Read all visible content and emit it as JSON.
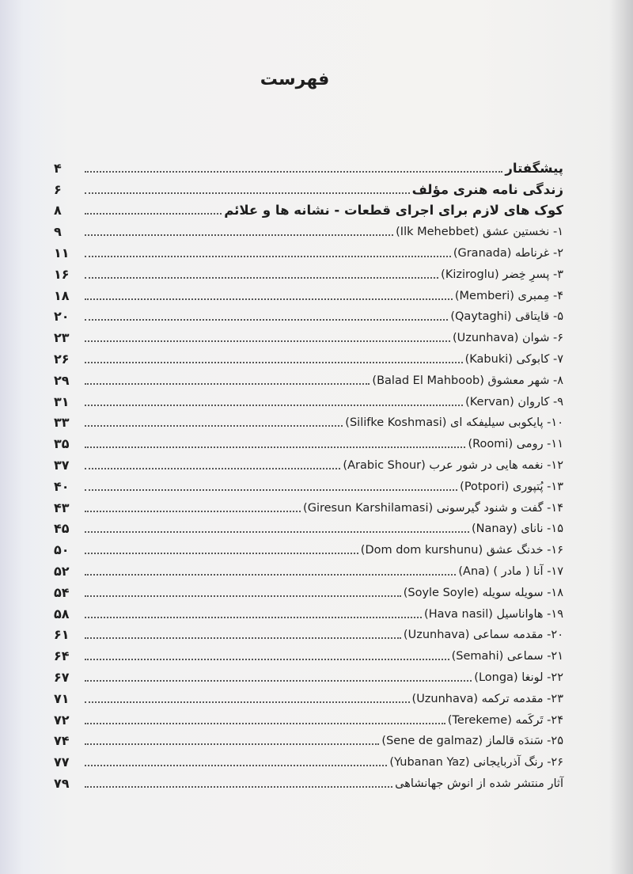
{
  "page_title": "فهرست",
  "entries": [
    {
      "label": "پیشگفتار",
      "page": "۴",
      "front": true
    },
    {
      "label": "زندگی نامه هنری مؤلف",
      "page": "۶",
      "front": true
    },
    {
      "label": "کوک های لازم برای اجرای قطعات - نشانه ها و علائم",
      "page": "۸",
      "front": true
    },
    {
      "label": "۱- نخستین عشق (Ilk Mehebbet)",
      "page": "۹"
    },
    {
      "label": "۲- غرناطه (Granada)",
      "page": "۱۱"
    },
    {
      "label": "۳- پسرِ خِضر (Kiziroglu)",
      "page": "۱۶"
    },
    {
      "label": "۴- مِمبری (Memberi)",
      "page": "۱۸"
    },
    {
      "label": "۵- قایتاقی (Qaytaghi)",
      "page": "۲۰"
    },
    {
      "label": "۶- شوان (Uzunhava)",
      "page": "۲۳"
    },
    {
      "label": "۷- کابوکی (Kabuki)",
      "page": "۲۶"
    },
    {
      "label": "۸- شهر معشوق (Balad El Mahboob)",
      "page": "۲۹"
    },
    {
      "label": "۹- کاروان (Kervan)",
      "page": "۳۱"
    },
    {
      "label": "۱۰- پایکوبی سیلیفکه ای (Silifke Koshmasi)",
      "page": "۳۳"
    },
    {
      "label": "۱۱- رومی (Roomi)",
      "page": "۳۵"
    },
    {
      "label": "۱۲- نغمه هایی در شور عرب (Arabic Shour)",
      "page": "۳۷"
    },
    {
      "label": "۱۳- پُتپوری (Potpori)",
      "page": "۴۰"
    },
    {
      "label": "۱۴- گفت و شنود گیرسونی (Giresun Karshilamasi)",
      "page": "۴۳"
    },
    {
      "label": "۱۵- نانای (Nanay)",
      "page": "۴۵"
    },
    {
      "label": "۱۶- خدنگ عشق (Dom dom kurshunu)",
      "page": "۵۰"
    },
    {
      "label": "۱۷- آنا ( مادر ) (Ana)",
      "page": "۵۲"
    },
    {
      "label": "۱۸- سویله سویله (Soyle Soyle)",
      "page": "۵۴"
    },
    {
      "label": "۱۹- هاواناسیل (Hava nasil)",
      "page": "۵۸"
    },
    {
      "label": "۲۰- مقدمه سماعی (Uzunhava)",
      "page": "۶۱"
    },
    {
      "label": "۲۱- سماعی (Semahi)",
      "page": "۶۴"
    },
    {
      "label": "۲۲- لونغا (Longa)",
      "page": "۶۷"
    },
    {
      "label": "۲۳- مقدمه ترکمه (Uzunhava)",
      "page": "۷۱"
    },
    {
      "label": "۲۴- تَرکَمه (Terekeme)",
      "page": "۷۲"
    },
    {
      "label": "۲۵- سَندَه قالماز (Sene de galmaz)",
      "page": "۷۴"
    },
    {
      "label": "۲۶- رنگ آذربایجانی (Yubanan Yaz)",
      "page": "۷۷"
    },
    {
      "label": "آثار منتشر شده از انوش جهانشاهی",
      "page": "۷۹"
    }
  ]
}
